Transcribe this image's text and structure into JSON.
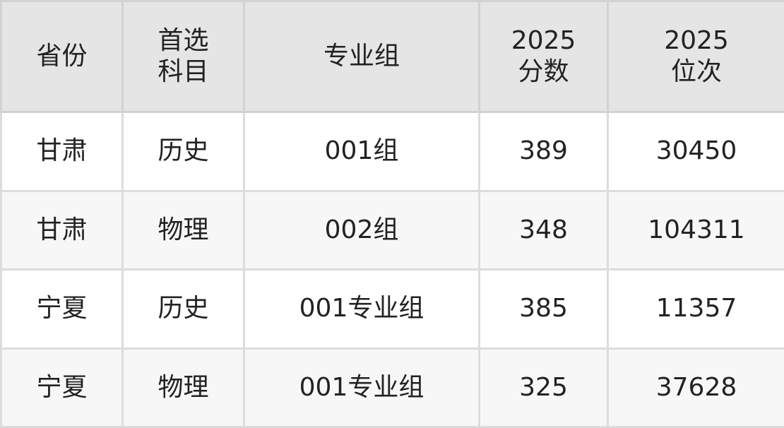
{
  "headers": [
    {
      "lines": [
        "省份"
      ]
    },
    {
      "lines": [
        "首选",
        "科目"
      ]
    },
    {
      "lines": [
        "专业组"
      ]
    },
    {
      "lines": [
        "2025",
        "分数"
      ]
    },
    {
      "lines": [
        "2025",
        "位次"
      ]
    }
  ],
  "rows": [
    [
      "甘肃",
      "历史",
      "001组",
      "389",
      "30450"
    ],
    [
      "甘肃",
      "物理",
      "002组",
      "348",
      "104311"
    ],
    [
      "宁夏",
      "历史",
      "001专业组",
      "385",
      "11357"
    ],
    [
      "宁夏",
      "物理",
      "001专业组",
      "325",
      "37628"
    ]
  ]
}
